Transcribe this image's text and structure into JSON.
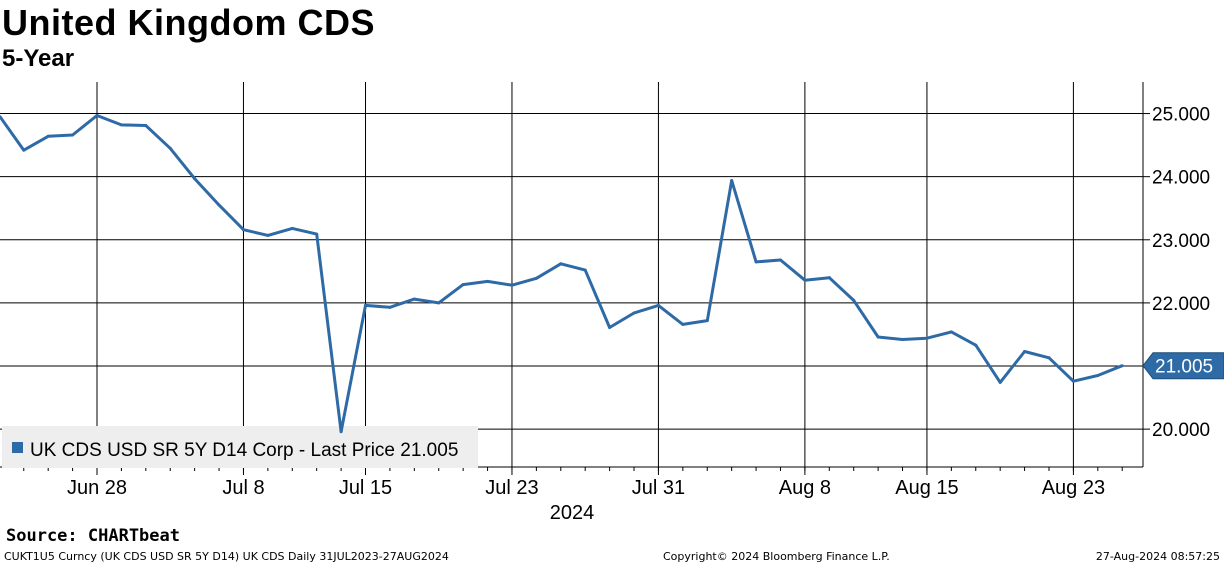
{
  "chart_data": {
    "type": "line",
    "title": "United Kingdom CDS",
    "subtitle": "5-Year",
    "x_tick_labels": [
      "Jun 28",
      "Jul 8",
      "Jul 15",
      "Jul 23",
      "Jul 31",
      "Aug 8",
      "Aug 15",
      "Aug 23"
    ],
    "x_year_label": "2024",
    "y_ticks": [
      "20.000",
      "21.000",
      "22.000",
      "23.000",
      "24.000",
      "25.000"
    ],
    "ylim": [
      19.4,
      25.5
    ],
    "grid": true,
    "y_axis_position": "right",
    "legend_position": "bottom-left",
    "series": [
      {
        "name": "UK CDS USD SR 5Y D14 Corp - Last Price 21.005",
        "color": "#2e6aa6",
        "x": [
          "2024-06-24",
          "2024-06-25",
          "2024-06-26",
          "2024-06-27",
          "2024-06-28",
          "2024-07-01",
          "2024-07-02",
          "2024-07-03",
          "2024-07-04",
          "2024-07-05",
          "2024-07-08",
          "2024-07-09",
          "2024-07-10",
          "2024-07-11",
          "2024-07-12",
          "2024-07-15",
          "2024-07-16",
          "2024-07-17",
          "2024-07-18",
          "2024-07-19",
          "2024-07-22",
          "2024-07-23",
          "2024-07-24",
          "2024-07-25",
          "2024-07-26",
          "2024-07-29",
          "2024-07-30",
          "2024-07-31",
          "2024-08-01",
          "2024-08-02",
          "2024-08-05",
          "2024-08-06",
          "2024-08-07",
          "2024-08-08",
          "2024-08-09",
          "2024-08-12",
          "2024-08-13",
          "2024-08-14",
          "2024-08-15",
          "2024-08-16",
          "2024-08-19",
          "2024-08-20",
          "2024-08-21",
          "2024-08-22",
          "2024-08-23",
          "2024-08-26",
          "2024-08-27"
        ],
        "values": [
          24.95,
          24.42,
          24.64,
          24.66,
          24.97,
          24.82,
          24.81,
          24.45,
          23.97,
          23.55,
          23.16,
          23.07,
          23.18,
          23.09,
          19.96,
          21.96,
          21.93,
          22.06,
          22.0,
          22.29,
          22.34,
          22.28,
          22.39,
          22.62,
          22.52,
          21.61,
          21.84,
          21.96,
          21.66,
          21.72,
          23.94,
          22.65,
          22.68,
          22.36,
          22.4,
          22.04,
          21.46,
          21.42,
          21.44,
          21.54,
          21.33,
          20.74,
          21.23,
          21.13,
          20.76,
          20.85,
          21.005
        ]
      }
    ],
    "last_value_label": "21.005"
  },
  "footer": {
    "source": "Source: CHARTbeat",
    "left": "CUKT1U5 Curncy (UK CDS USD SR 5Y D14) UK CDS  Daily 31JUL2023-27AUG2024",
    "center": "Copyright© 2024 Bloomberg Finance L.P.",
    "right": "27-Aug-2024 08:57:25"
  }
}
